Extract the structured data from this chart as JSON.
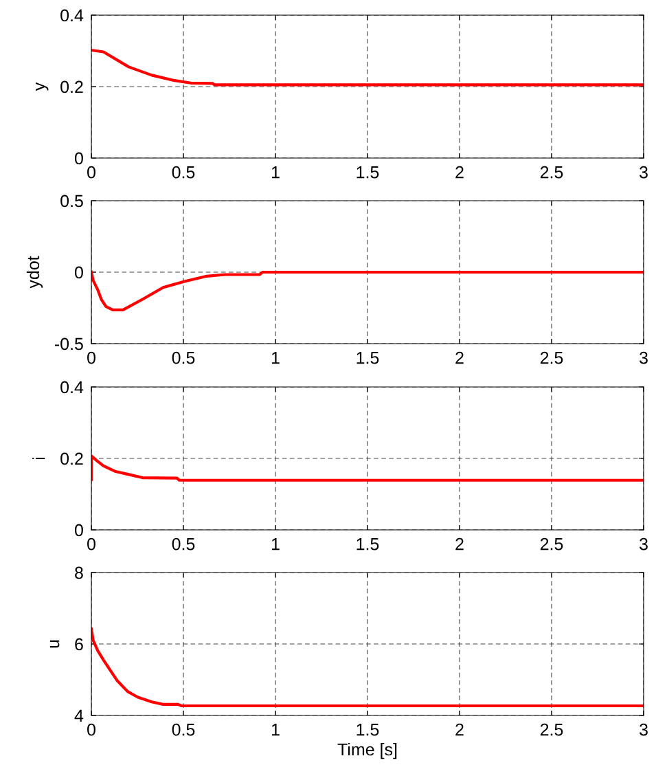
{
  "chart_data": [
    {
      "type": "line",
      "ylabel": "y",
      "xlim": [
        0,
        3
      ],
      "xticks": [
        0,
        0.5,
        1,
        1.5,
        2,
        2.5,
        3
      ],
      "ylim": [
        0,
        0.4
      ],
      "yticks": [
        0,
        0.2,
        0.4
      ],
      "grid": true,
      "legend": false,
      "marker": "none",
      "line_style": "solid",
      "series": [
        {
          "color": "#ff0000",
          "x": [
            0,
            0.066,
            0.203,
            0.328,
            0.452,
            0.54,
            0.658,
            0.67,
            3
          ],
          "values": [
            0.302,
            0.297,
            0.255,
            0.232,
            0.217,
            0.21,
            0.209,
            0.205,
            0.205
          ]
        }
      ]
    },
    {
      "type": "line",
      "ylabel": "ydot",
      "xlim": [
        0,
        3
      ],
      "xticks": [
        0,
        0.5,
        1,
        1.5,
        2,
        2.5,
        3
      ],
      "ylim": [
        -0.5,
        0.5
      ],
      "yticks": [
        {
          "value": -0.5,
          "label": "-0.5"
        },
        0,
        0.5
      ],
      "grid": true,
      "legend": false,
      "marker": "none",
      "line_style": "solid",
      "series": [
        {
          "color": "#ff0000",
          "x": [
            0,
            0.01,
            0.035,
            0.054,
            0.079,
            0.116,
            0.172,
            0.278,
            0.39,
            0.502,
            0.627,
            0.727,
            0.914,
            0.93,
            3
          ],
          "values": [
            0,
            -0.058,
            -0.124,
            -0.19,
            -0.24,
            -0.264,
            -0.264,
            -0.19,
            -0.107,
            -0.066,
            -0.028,
            -0.017,
            -0.017,
            0,
            0
          ]
        }
      ]
    },
    {
      "type": "line",
      "ylabel": "i",
      "xlim": [
        0,
        3
      ],
      "xticks": [
        0,
        0.5,
        1,
        1.5,
        2,
        2.5,
        3
      ],
      "ylim": [
        0,
        0.4
      ],
      "yticks": [
        0,
        0.2,
        0.4
      ],
      "grid": true,
      "legend": false,
      "marker": "none",
      "line_style": "solid",
      "series": [
        {
          "color": "#ff0000",
          "x": [
            0,
            0,
            0.029,
            0.066,
            0.128,
            0.203,
            0.278,
            0.465,
            0.477,
            3
          ],
          "values": [
            0.141,
            0.207,
            0.194,
            0.179,
            0.164,
            0.155,
            0.146,
            0.145,
            0.139,
            0.139
          ]
        }
      ]
    },
    {
      "type": "line",
      "ylabel": "u",
      "xlabel": "Time [s]",
      "xlim": [
        0,
        3
      ],
      "xticks": [
        0,
        0.5,
        1,
        1.5,
        2,
        2.5,
        3
      ],
      "ylim": [
        4,
        8
      ],
      "yticks": [
        4,
        6,
        8
      ],
      "grid": true,
      "legend": false,
      "marker": "none",
      "line_style": "solid",
      "series": [
        {
          "color": "#ff0000",
          "x": [
            0,
            0.01,
            0.035,
            0.066,
            0.103,
            0.141,
            0.197,
            0.253,
            0.328,
            0.39,
            0.471,
            0.49,
            3
          ],
          "values": [
            6.42,
            6.1,
            5.81,
            5.55,
            5.26,
            4.97,
            4.67,
            4.51,
            4.38,
            4.31,
            4.31,
            4.27,
            4.27
          ]
        }
      ]
    }
  ]
}
